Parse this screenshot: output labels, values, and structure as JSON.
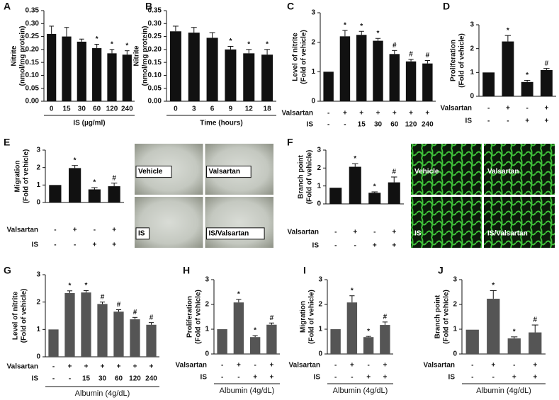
{
  "chart_data": [
    {
      "type": "bar",
      "panel": "A",
      "ylabel": [
        "Nitrite",
        "(nmol/mg protein)"
      ],
      "categories": [
        "0",
        "15",
        "30",
        "60",
        "120",
        "240"
      ],
      "xlabel": "IS (µg/ml)",
      "values": [
        0.26,
        0.25,
        0.23,
        0.205,
        0.185,
        0.18
      ],
      "errors": [
        0.03,
        0.035,
        0.01,
        0.015,
        0.015,
        0.015
      ],
      "annotations": [
        null,
        null,
        null,
        "*",
        "*",
        "*"
      ],
      "color": "#111111",
      "ylim": [
        0,
        0.35
      ],
      "yticks": [
        {
          "value": 0,
          "label": "0.00"
        },
        {
          "value": 0.05,
          "label": "0.05"
        },
        {
          "value": 0.1,
          "label": "0.10"
        },
        {
          "value": 0.15,
          "label": "0.15"
        },
        {
          "value": 0.2,
          "label": "0.20"
        },
        {
          "value": 0.25,
          "label": "0.25"
        },
        {
          "value": 0.3,
          "label": "0.30"
        },
        {
          "value": 0.35,
          "label": "0.35"
        }
      ]
    },
    {
      "type": "bar",
      "panel": "B",
      "ylabel": [
        "Nitrite",
        "(nmol/mg protein)"
      ],
      "categories": [
        "0",
        "3",
        "6",
        "9",
        "12",
        "18"
      ],
      "xlabel": "Time (hours)",
      "values": [
        0.27,
        0.265,
        0.245,
        0.2,
        0.185,
        0.18
      ],
      "errors": [
        0.02,
        0.02,
        0.02,
        0.012,
        0.015,
        0.02
      ],
      "annotations": [
        null,
        null,
        null,
        "*",
        "*",
        "*"
      ],
      "color": "#111111",
      "ylim": [
        0,
        0.35
      ],
      "yticks": [
        {
          "value": 0,
          "label": "0.00"
        },
        {
          "value": 0.05,
          "label": "0.05"
        },
        {
          "value": 0.1,
          "label": "0.10"
        },
        {
          "value": 0.15,
          "label": "0.15"
        },
        {
          "value": 0.2,
          "label": "0.20"
        },
        {
          "value": 0.25,
          "label": "0.25"
        },
        {
          "value": 0.3,
          "label": "0.30"
        },
        {
          "value": 0.35,
          "label": "0.35"
        }
      ]
    },
    {
      "type": "bar",
      "panel": "C",
      "ylabel": [
        "Level of nitrite",
        "(Fold of vehicle)"
      ],
      "rows": [
        {
          "name": "Valsartan",
          "values": [
            "-",
            "+",
            "+",
            "+",
            "+",
            "+",
            "+"
          ]
        },
        {
          "name": "IS",
          "values": [
            "-",
            "-",
            "15",
            "30",
            "60",
            "120",
            "240"
          ]
        }
      ],
      "values": [
        1,
        2.2,
        2.25,
        2.05,
        1.6,
        1.35,
        1.28
      ],
      "errors": [
        null,
        0.2,
        0.12,
        0.08,
        0.12,
        0.07,
        0.1
      ],
      "annotations": [
        null,
        "*",
        "*",
        "*",
        "#",
        "#",
        "#"
      ],
      "color": "#111111",
      "ylim": [
        0,
        3
      ],
      "yticks": [
        0,
        1,
        2,
        3
      ]
    },
    {
      "type": "bar",
      "panel": "D",
      "ylabel": [
        "Proliferation",
        "(Fold of vehicle)"
      ],
      "rows": [
        {
          "name": "Valsartan",
          "values": [
            "-",
            "+",
            "-",
            "+"
          ]
        },
        {
          "name": "IS",
          "values": [
            "-",
            "-",
            "+",
            "+"
          ]
        }
      ],
      "values": [
        1,
        2.3,
        0.6,
        1.1
      ],
      "errors": [
        null,
        0.25,
        0.07,
        0.07
      ],
      "annotations": [
        null,
        "*",
        "*",
        "#"
      ],
      "color": "#111111",
      "ylim": [
        0,
        3
      ],
      "yticks": [
        0,
        1,
        2,
        3
      ]
    },
    {
      "type": "bar",
      "panel": "E",
      "ylabel": [
        "Migration",
        "(Fold of vehicle)"
      ],
      "rows": [
        {
          "name": "Valsartan",
          "values": [
            "-",
            "+",
            "-",
            "+"
          ]
        },
        {
          "name": "IS",
          "values": [
            "-",
            "-",
            "+",
            "+"
          ]
        }
      ],
      "values": [
        1,
        1.97,
        0.75,
        0.93
      ],
      "errors": [
        null,
        0.15,
        0.1,
        0.18
      ],
      "annotations": [
        null,
        "*",
        "*",
        "#"
      ],
      "color": "#111111",
      "ylim": [
        0,
        3
      ],
      "yticks": [
        0,
        1,
        2,
        3
      ],
      "images": [
        "Vehicle",
        "Valsartan",
        "IS",
        "IS/Valsartan"
      ]
    },
    {
      "type": "bar",
      "panel": "F",
      "ylabel": [
        "Branch point",
        "(Fold of vehicle)"
      ],
      "rows": [
        {
          "name": "Valsartan",
          "values": [
            "-",
            "+",
            "-",
            "+"
          ]
        },
        {
          "name": "IS",
          "values": [
            "-",
            "-",
            "+",
            "+"
          ]
        }
      ],
      "values": [
        0.9,
        2.07,
        0.62,
        1.2
      ],
      "errors": [
        null,
        0.17,
        0.05,
        0.3
      ],
      "annotations": [
        null,
        "*",
        "*",
        "#"
      ],
      "color": "#111111",
      "ylim": [
        0,
        3
      ],
      "yticks": [
        0,
        1,
        2,
        3
      ],
      "images": [
        "Vehicle",
        "Valsartan",
        "IS",
        "IS/Valsartan"
      ]
    },
    {
      "type": "bar",
      "panel": "G",
      "ylabel": [
        "Level of nitrite",
        "(Fold of vehicle)"
      ],
      "rows": [
        {
          "name": "Valsartan",
          "values": [
            "-",
            "+",
            "+",
            "+",
            "+",
            "+",
            "+"
          ]
        },
        {
          "name": "IS",
          "values": [
            "-",
            "-",
            "15",
            "30",
            "60",
            "120",
            "240"
          ]
        }
      ],
      "values": [
        1,
        2.33,
        2.35,
        1.93,
        1.65,
        1.37,
        1.17
      ],
      "errors": [
        null,
        0.08,
        0.07,
        0.07,
        0.07,
        0.07,
        0.08
      ],
      "annotations": [
        null,
        "*",
        "*",
        "#",
        "#",
        "#",
        "#"
      ],
      "color": "#555555",
      "ylim": [
        0,
        3
      ],
      "yticks": [
        0,
        1,
        2,
        3
      ],
      "footer": "Albumin (4g/dL)"
    },
    {
      "type": "bar",
      "panel": "H",
      "ylabel": [
        "Proliferation",
        "(Fold of vehicle)"
      ],
      "rows": [
        {
          "name": "Valsartan",
          "values": [
            "-",
            "+",
            "-",
            "+"
          ]
        },
        {
          "name": "IS",
          "values": [
            "-",
            "-",
            "+",
            "+"
          ]
        }
      ],
      "values": [
        1,
        2.08,
        0.68,
        1.18
      ],
      "errors": [
        null,
        0.12,
        0.06,
        0.07
      ],
      "annotations": [
        null,
        "*",
        "*",
        "#"
      ],
      "color": "#555555",
      "ylim": [
        0,
        3
      ],
      "yticks": [
        0,
        1,
        2,
        3
      ],
      "footer": "Albumin (4g/dL)"
    },
    {
      "type": "bar",
      "panel": "I",
      "ylabel": [
        "Migration",
        "(Fold of vehicle)"
      ],
      "rows": [
        {
          "name": "Valsartan",
          "values": [
            "-",
            "+",
            "-",
            "+"
          ]
        },
        {
          "name": "IS",
          "values": [
            "-",
            "-",
            "+",
            "+"
          ]
        }
      ],
      "values": [
        1,
        2.08,
        0.68,
        1.17
      ],
      "errors": [
        null,
        0.27,
        0.03,
        0.12
      ],
      "annotations": [
        null,
        "*",
        "*",
        "#"
      ],
      "color": "#555555",
      "ylim": [
        0,
        3
      ],
      "yticks": [
        0,
        1,
        2,
        3
      ],
      "footer": "Albumin (4g/dL)"
    },
    {
      "type": "bar",
      "panel": "J",
      "ylabel": [
        "Branch point",
        "(Fold of vehicle)"
      ],
      "rows": [
        {
          "name": "Valsartan",
          "values": [
            "-",
            "+",
            "-",
            "+"
          ]
        },
        {
          "name": "IS",
          "values": [
            "-",
            "-",
            "+",
            "+"
          ]
        }
      ],
      "values": [
        0.98,
        2.23,
        0.63,
        0.87
      ],
      "errors": [
        null,
        0.33,
        0.06,
        0.3
      ],
      "annotations": [
        null,
        "*",
        "*",
        "#"
      ],
      "color": "#555555",
      "ylim": [
        0,
        3
      ],
      "yticks": [
        0,
        1,
        2,
        3
      ],
      "footer": "Albumin (4g/dL)"
    }
  ]
}
